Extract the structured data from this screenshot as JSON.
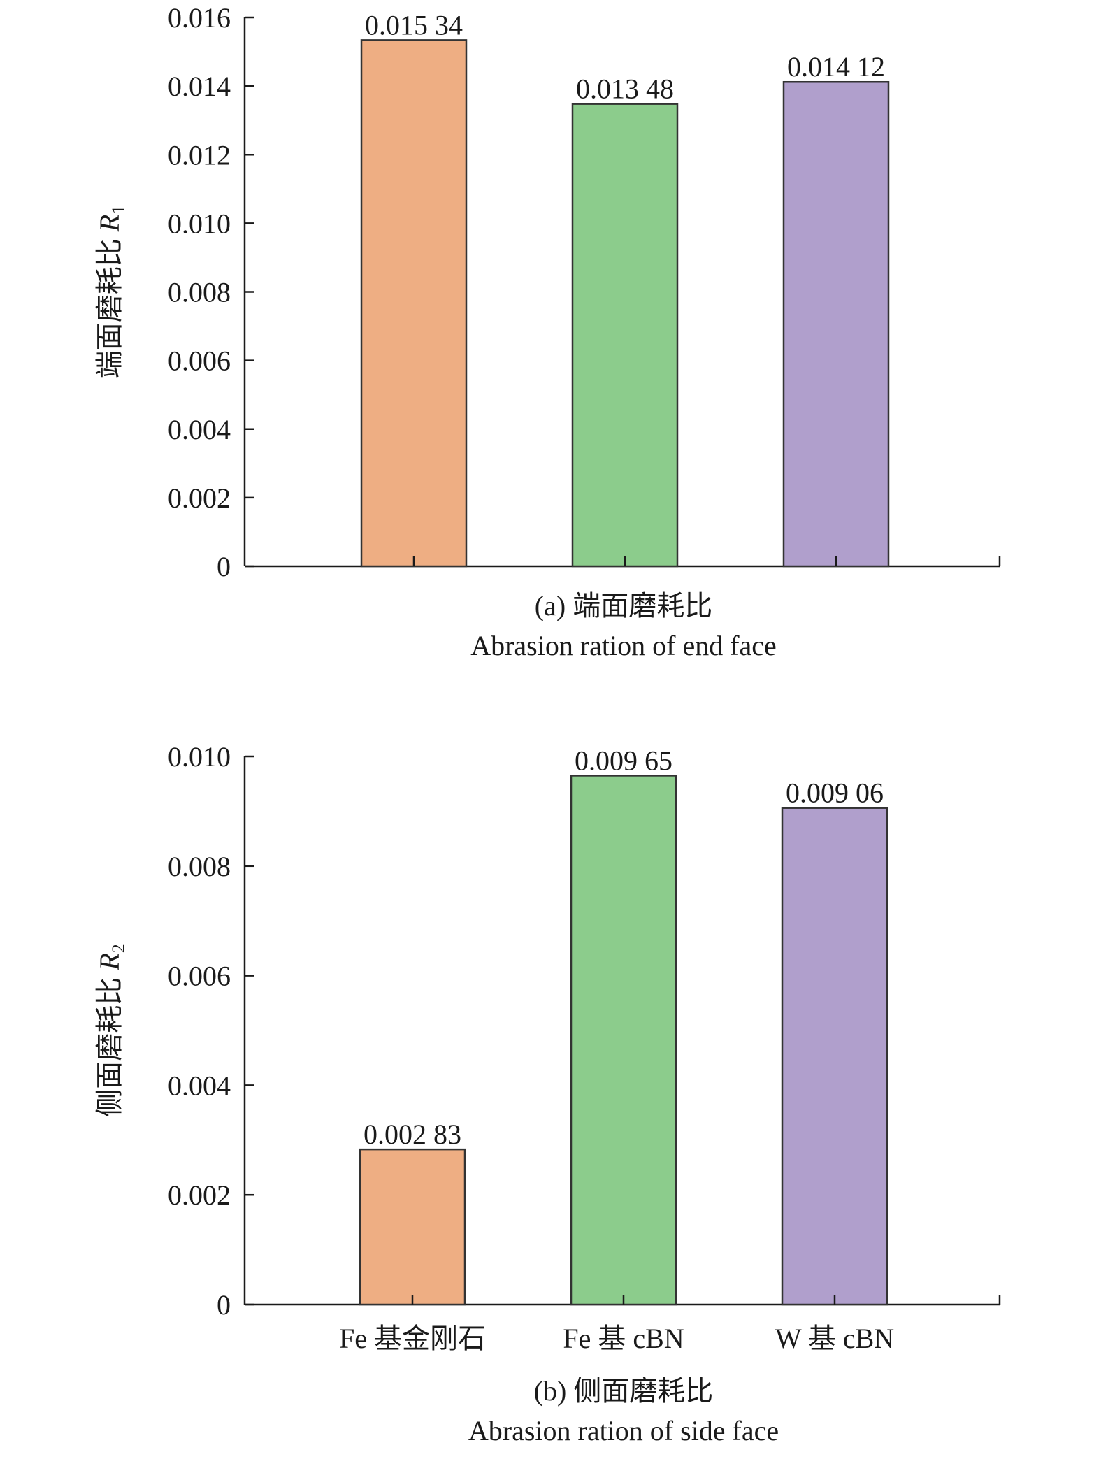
{
  "chart_data": [
    {
      "type": "bar",
      "categories": [
        "Fe 基金刚石",
        "Fe 基 cBN",
        "W 基 cBN"
      ],
      "show_category_labels": false,
      "values": [
        0.01534,
        0.01348,
        0.01412
      ],
      "value_labels": [
        "0.015 34",
        "0.013 48",
        "0.014 12"
      ],
      "colors": [
        "#eeae83",
        "#8ccc8c",
        "#b09fcc"
      ],
      "ylabel": "端面磨耗比",
      "ylabel_symbol": "R",
      "ylabel_subscript": "1",
      "ylim": [
        0,
        0.016
      ],
      "yticks": [
        0,
        0.002,
        0.004,
        0.006,
        0.008,
        0.01,
        0.012,
        0.014,
        0.016
      ],
      "ytick_labels": [
        "0",
        "0.002",
        "0.004",
        "0.006",
        "0.008",
        "0.010",
        "0.012",
        "0.014",
        "0.016"
      ],
      "caption_line1": "(a) 端面磨耗比",
      "caption_line2": "Abrasion ration of end face",
      "grid": false,
      "legend": "none"
    },
    {
      "type": "bar",
      "categories": [
        "Fe 基金刚石",
        "Fe 基 cBN",
        "W 基 cBN"
      ],
      "show_category_labels": true,
      "values": [
        0.00283,
        0.00965,
        0.00906
      ],
      "value_labels": [
        "0.002 83",
        "0.009 65",
        "0.009 06"
      ],
      "colors": [
        "#eeae83",
        "#8ccc8c",
        "#b09fcc"
      ],
      "ylabel": "侧面磨耗比",
      "ylabel_symbol": "R",
      "ylabel_subscript": "2",
      "ylim": [
        0,
        0.01
      ],
      "yticks": [
        0,
        0.002,
        0.004,
        0.006,
        0.008,
        0.01
      ],
      "ytick_labels": [
        "0",
        "0.002",
        "0.004",
        "0.006",
        "0.008",
        "0.010"
      ],
      "caption_line1": "(b) 侧面磨耗比",
      "caption_line2": "Abrasion ration of side face",
      "grid": false,
      "legend": "none"
    }
  ]
}
